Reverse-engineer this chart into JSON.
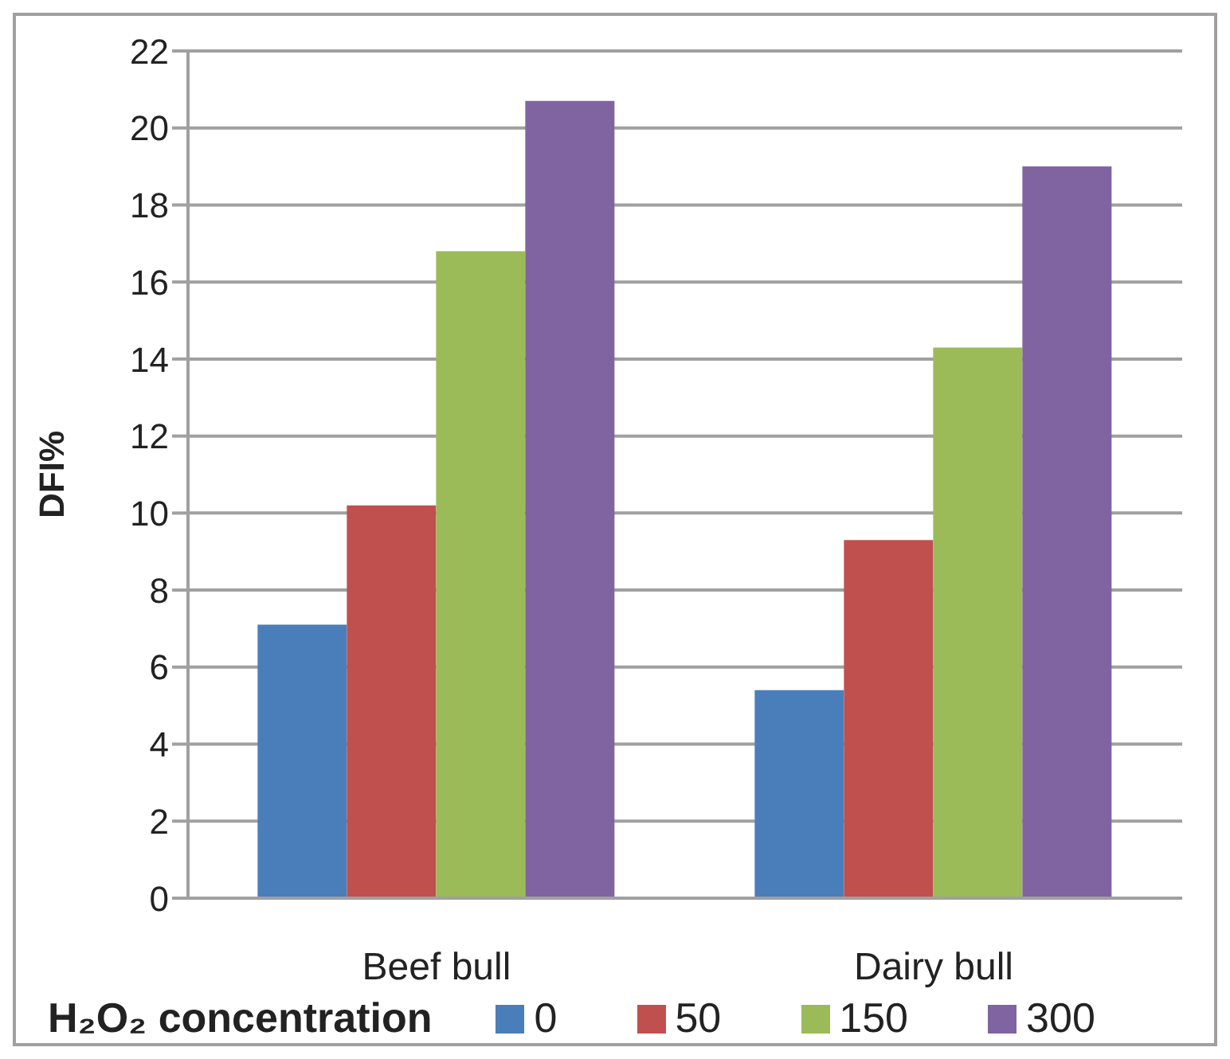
{
  "chart_data": {
    "type": "bar",
    "ylabel": "DFI%",
    "legend_title": "H₂O₂ concentration",
    "categories": [
      "Beef bull",
      "Dairy bull"
    ],
    "series": [
      {
        "name": "0",
        "color": "#4a7ebb",
        "values": [
          7.1,
          5.4
        ]
      },
      {
        "name": "50",
        "color": "#c0504d",
        "values": [
          10.2,
          9.3
        ]
      },
      {
        "name": "150",
        "color": "#9bbb59",
        "values": [
          16.8,
          14.3
        ]
      },
      {
        "name": "300",
        "color": "#8064a2",
        "values": [
          20.7,
          19.0
        ]
      }
    ],
    "ylim": [
      0,
      22
    ],
    "yticks": [
      0,
      2,
      4,
      6,
      8,
      10,
      12,
      14,
      16,
      18,
      20,
      22
    ],
    "grid": "y",
    "legend": "bottom"
  }
}
